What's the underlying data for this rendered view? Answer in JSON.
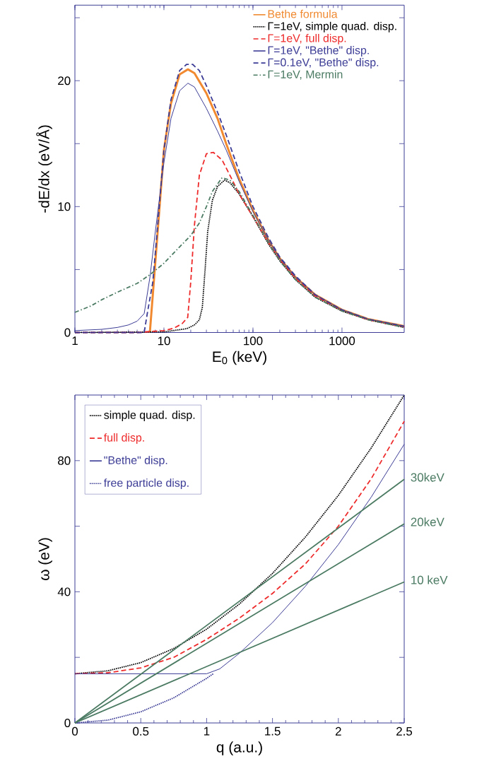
{
  "chart_data": [
    {
      "type": "line",
      "xlabel": "E$_{0}$ (keV)",
      "ylabel": "-dE/dx (eV/Å)",
      "log": "x",
      "xlim": [
        1,
        5000
      ],
      "ylim": [
        0,
        26
      ],
      "xticks": [
        1,
        10,
        100,
        1000
      ],
      "yticks": [
        0,
        {
          "value": 5,
          "label": null
        },
        10,
        {
          "value": 15,
          "label": null
        },
        20,
        {
          "value": 25,
          "label": null
        }
      ],
      "legend": "top right",
      "marker": "none",
      "series": [
        {
          "name": "Bethe  formula",
          "color": "#f0892f",
          "line_style": "solid",
          "x": [
            6.95,
            7.5,
            8.5,
            10,
            12,
            15,
            18.6,
            22,
            30,
            40,
            50,
            70,
            100,
            150,
            200,
            300,
            500,
            1000,
            2000,
            5000
          ],
          "values": [
            0,
            3,
            8,
            14.5,
            18.2,
            20.5,
            20.9,
            20.6,
            19,
            17,
            15,
            12.2,
            9.7,
            7.3,
            5.9,
            4.4,
            3,
            1.8,
            1.05,
            0.5
          ]
        },
        {
          "name": "Γ=1eV, simple quad. disp.",
          "color": "#000000",
          "line_style": "dotted",
          "x": [
            1,
            10,
            18,
            22,
            25,
            27,
            29,
            31,
            35,
            40,
            48,
            55,
            70,
            100,
            150,
            200,
            300,
            500,
            1000,
            2000,
            5000
          ],
          "values": [
            0,
            0.05,
            0.3,
            0.6,
            1,
            2,
            5,
            8,
            10.5,
            11.6,
            12.1,
            11.9,
            11,
            9.2,
            7,
            5.7,
            4.2,
            2.8,
            1.7,
            1,
            0.4
          ]
        },
        {
          "name": "Γ=1eV, full disp.",
          "color": "#ee2a2a",
          "line_style": "dashed",
          "x": [
            1,
            5,
            10,
            13,
            16,
            18.5,
            20,
            22,
            25,
            30,
            36,
            45,
            55,
            70,
            100,
            150,
            200,
            300,
            500,
            1000,
            2000,
            5000
          ],
          "values": [
            0,
            0,
            0.15,
            0.35,
            0.7,
            1.2,
            4,
            8.5,
            12.5,
            14.2,
            14.3,
            13.7,
            12.5,
            11,
            9.2,
            7.1,
            5.8,
            4.3,
            2.9,
            1.75,
            1,
            0.45
          ]
        },
        {
          "name": "Γ=1eV, \"Bethe\" disp.",
          "color": "#3c3c96",
          "line_style": "solid",
          "x": [
            1,
            2,
            3,
            4,
            5,
            6,
            7,
            8,
            10,
            12,
            15,
            18.6,
            22,
            30,
            40,
            50,
            70,
            100,
            150,
            200,
            300,
            500,
            1000,
            2000,
            5000
          ],
          "values": [
            0.15,
            0.25,
            0.4,
            0.6,
            0.9,
            1.5,
            4.5,
            8,
            13.5,
            17,
            19.2,
            19.8,
            19.5,
            17.8,
            16,
            14.5,
            12,
            9.6,
            7.3,
            5.9,
            4.4,
            3,
            1.8,
            1.05,
            0.5
          ]
        },
        {
          "name": "Γ=0.1eV, \"Bethe\" disp.",
          "color": "#3c3c96",
          "line_style": "dashed",
          "x": [
            1,
            6,
            6.5,
            7.5,
            8.5,
            10,
            12,
            15,
            18,
            21,
            25,
            30,
            40,
            50,
            70,
            100,
            150,
            200,
            300,
            500,
            1000,
            2000,
            5000
          ],
          "values": [
            0,
            0,
            1.5,
            4,
            8.5,
            14.5,
            18.5,
            20.8,
            21.3,
            21.3,
            20.8,
            19.6,
            17.5,
            15.7,
            12.8,
            10,
            7.5,
            6,
            4.5,
            3,
            1.8,
            1.05,
            0.5
          ]
        },
        {
          "name": "Γ=1eV, Mermin",
          "color": "#4a7a62",
          "line_style": "dashdot",
          "x": [
            1,
            1.5,
            2,
            3,
            5,
            7,
            10,
            15,
            20,
            25,
            30,
            35,
            45,
            55,
            70,
            100,
            150,
            200,
            300,
            500,
            1000,
            2000,
            5000
          ],
          "values": [
            1.6,
            2.1,
            2.6,
            3.2,
            3.9,
            4.6,
            5.5,
            6.8,
            7.7,
            8.7,
            10,
            11.2,
            12.3,
            12.1,
            11.2,
            9.3,
            7.1,
            5.7,
            4.2,
            2.8,
            1.7,
            1,
            0.4
          ]
        }
      ]
    },
    {
      "type": "line",
      "xlabel": "q (a.u.)",
      "ylabel": "ω (eV)",
      "xlim": [
        0,
        2.5
      ],
      "ylim": [
        0,
        100
      ],
      "xticks": [
        0,
        0.5,
        1,
        1.5,
        2,
        2.5
      ],
      "yticks": [
        0,
        {
          "value": 20,
          "label": null
        },
        40,
        {
          "value": 60,
          "label": null
        },
        80
      ],
      "legend": "top left",
      "marker": "none",
      "annotations": [
        "30keV",
        "20keV",
        "10 keV"
      ],
      "series": [
        {
          "name": "simple quad. disp.",
          "color": "#000000",
          "line_style": "dotted",
          "x": [
            0,
            0.25,
            0.5,
            0.75,
            1,
            1.25,
            1.5,
            1.75,
            2,
            2.25,
            2.5
          ],
          "values": [
            15,
            15.9,
            18.4,
            22.7,
            28.6,
            36.3,
            45.6,
            56.7,
            69.4,
            83.9,
            100
          ]
        },
        {
          "name": "full disp.",
          "color": "#ee2a2a",
          "line_style": "dashed",
          "x": [
            0,
            0.25,
            0.5,
            0.75,
            1,
            1.25,
            1.5,
            1.75,
            2,
            2.25,
            2.5
          ],
          "values": [
            15,
            15.3,
            16.8,
            20,
            25.5,
            32,
            39.5,
            48.5,
            60,
            74.5,
            92
          ]
        },
        {
          "name": "\"Bethe\" disp.",
          "color": "#3c3c96",
          "line_style": "solid",
          "x": [
            0,
            1,
            1.1,
            1.25,
            1.5,
            1.75,
            2,
            2.25,
            2.5
          ],
          "values": [
            15,
            15,
            16.5,
            21.3,
            30.6,
            41.7,
            54.4,
            68.9,
            85
          ]
        },
        {
          "name": "free particle disp.",
          "color": "#3c3c96",
          "line_style": "dotted",
          "x": [
            0,
            0.25,
            0.5,
            0.75,
            1,
            1.05
          ],
          "values": [
            0,
            0.85,
            3.4,
            7.65,
            13.6,
            15
          ]
        },
        {
          "color": "#4a7a62",
          "line_style": "solid",
          "x": [
            0,
            2.5
          ],
          "values": [
            0,
            74.3
          ]
        },
        {
          "color": "#4a7a62",
          "line_style": "solid",
          "x": [
            0,
            2.5
          ],
          "values": [
            0,
            60.7
          ]
        },
        {
          "color": "#4a7a62",
          "line_style": "solid",
          "x": [
            0,
            2.5
          ],
          "values": [
            0,
            43
          ]
        }
      ]
    }
  ]
}
